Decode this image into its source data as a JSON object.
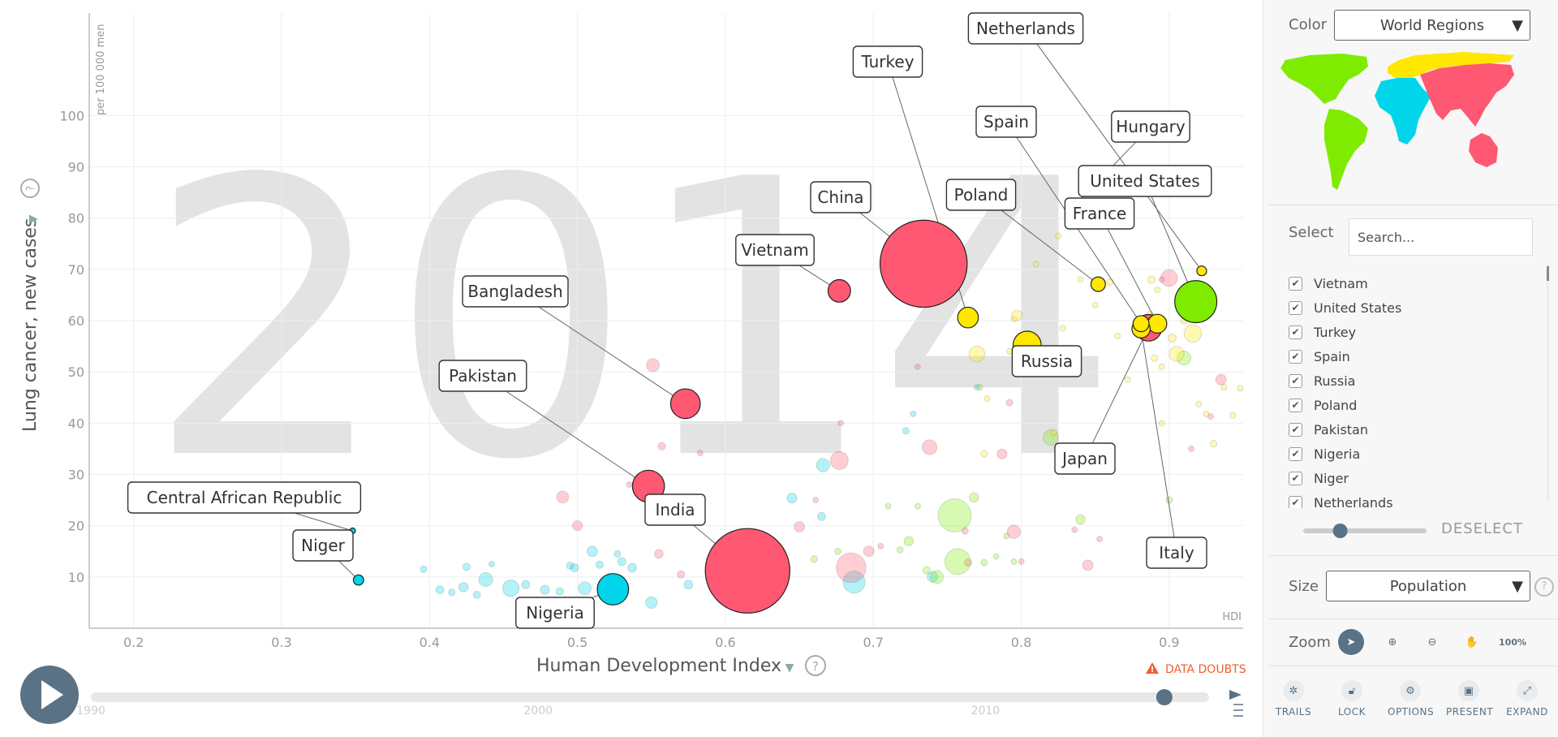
{
  "chart_data": {
    "type": "scatter",
    "year_watermark": "2014",
    "xlabel": "Human Development Index",
    "ylabel": "Lung cancer, new cases",
    "y_unit": "per 100 000 men",
    "x_corner_label": "HDI",
    "xlim": [
      0.17,
      0.95
    ],
    "ylim": [
      0,
      120
    ],
    "x_ticks": [
      "0.2",
      "0.3",
      "0.4",
      "0.5",
      "0.6",
      "0.7",
      "0.8",
      "0.9"
    ],
    "y_ticks": [
      "10",
      "20",
      "30",
      "40",
      "50",
      "60",
      "70",
      "80",
      "90",
      "100"
    ],
    "size_by": "Population",
    "color_by": "World Regions",
    "region_colors": {
      "africa": "#00d5e9",
      "americas": "#7feb00",
      "asia": "#ff5872",
      "europe": "#ffe700"
    },
    "labeled_points": [
      {
        "name": "Netherlands",
        "x": 0.922,
        "y": 69.7,
        "region": "europe",
        "pop": 17
      },
      {
        "name": "Turkey",
        "x": 0.764,
        "y": 60.6,
        "region": "europe",
        "pop": 77
      },
      {
        "name": "Spain",
        "x": 0.881,
        "y": 59.4,
        "region": "europe",
        "pop": 46
      },
      {
        "name": "Hungary",
        "x": 0.833,
        "y": 81.5,
        "region": "europe",
        "pop": 10
      },
      {
        "name": "United States",
        "x": 0.918,
        "y": 63.7,
        "region": "americas",
        "pop": 319
      },
      {
        "name": "Poland",
        "x": 0.852,
        "y": 67.1,
        "region": "europe",
        "pop": 38
      },
      {
        "name": "France",
        "x": 0.892,
        "y": 59.4,
        "region": "europe",
        "pop": 64
      },
      {
        "name": "China",
        "x": 0.734,
        "y": 71.1,
        "region": "asia",
        "pop": 1370
      },
      {
        "name": "Vietnam",
        "x": 0.677,
        "y": 65.8,
        "region": "asia",
        "pop": 91
      },
      {
        "name": "Bangladesh",
        "x": 0.573,
        "y": 43.8,
        "region": "asia",
        "pop": 159
      },
      {
        "name": "Pakistan",
        "x": 0.548,
        "y": 27.7,
        "region": "asia",
        "pop": 185
      },
      {
        "name": "Central African Republic",
        "x": 0.348,
        "y": 19.0,
        "region": "africa",
        "pop": 4.8
      },
      {
        "name": "Niger",
        "x": 0.352,
        "y": 9.4,
        "region": "africa",
        "pop": 19
      },
      {
        "name": "India",
        "x": 0.615,
        "y": 11.2,
        "region": "asia",
        "pop": 1290
      },
      {
        "name": "Nigeria",
        "x": 0.524,
        "y": 7.6,
        "region": "africa",
        "pop": 177
      },
      {
        "name": "Russia",
        "x": 0.804,
        "y": 55.2,
        "region": "europe",
        "pop": 143
      },
      {
        "name": "Japan",
        "x": 0.886,
        "y": 58.6,
        "region": "asia",
        "pop": 127
      },
      {
        "name": "Italy",
        "x": 0.881,
        "y": 58.4,
        "region": "europe",
        "pop": 60
      }
    ],
    "other_points": [
      {
        "x": 0.396,
        "y": 11.5,
        "region": "africa",
        "pop": 8
      },
      {
        "x": 0.407,
        "y": 7.5,
        "region": "africa",
        "pop": 12
      },
      {
        "x": 0.415,
        "y": 7.0,
        "region": "africa",
        "pop": 8
      },
      {
        "x": 0.423,
        "y": 8.0,
        "region": "africa",
        "pop": 16
      },
      {
        "x": 0.425,
        "y": 12.0,
        "region": "africa",
        "pop": 10
      },
      {
        "x": 0.432,
        "y": 6.5,
        "region": "africa",
        "pop": 10
      },
      {
        "x": 0.438,
        "y": 9.5,
        "region": "africa",
        "pop": 35
      },
      {
        "x": 0.442,
        "y": 12.5,
        "region": "africa",
        "pop": 6
      },
      {
        "x": 0.455,
        "y": 7.8,
        "region": "africa",
        "pop": 50
      },
      {
        "x": 0.465,
        "y": 8.5,
        "region": "africa",
        "pop": 12
      },
      {
        "x": 0.478,
        "y": 7.5,
        "region": "africa",
        "pop": 15
      },
      {
        "x": 0.488,
        "y": 7.2,
        "region": "africa",
        "pop": 10
      },
      {
        "x": 0.495,
        "y": 12.2,
        "region": "africa",
        "pop": 10
      },
      {
        "x": 0.498,
        "y": 11.8,
        "region": "africa",
        "pop": 12
      },
      {
        "x": 0.505,
        "y": 7.8,
        "region": "africa",
        "pop": 30
      },
      {
        "x": 0.51,
        "y": 15.0,
        "region": "africa",
        "pop": 20
      },
      {
        "x": 0.515,
        "y": 12.4,
        "region": "africa",
        "pop": 10
      },
      {
        "x": 0.52,
        "y": 6.2,
        "region": "africa",
        "pop": 14
      },
      {
        "x": 0.527,
        "y": 14.5,
        "region": "africa",
        "pop": 8
      },
      {
        "x": 0.53,
        "y": 13.0,
        "region": "africa",
        "pop": 12
      },
      {
        "x": 0.537,
        "y": 11.8,
        "region": "africa",
        "pop": 14
      },
      {
        "x": 0.55,
        "y": 5.0,
        "region": "africa",
        "pop": 24
      },
      {
        "x": 0.575,
        "y": 8.5,
        "region": "africa",
        "pop": 14
      },
      {
        "x": 0.645,
        "y": 25.4,
        "region": "africa",
        "pop": 18
      },
      {
        "x": 0.665,
        "y": 21.8,
        "region": "africa",
        "pop": 12
      },
      {
        "x": 0.666,
        "y": 31.8,
        "region": "africa",
        "pop": 32
      },
      {
        "x": 0.687,
        "y": 9.0,
        "region": "africa",
        "pop": 88
      },
      {
        "x": 0.722,
        "y": 38.5,
        "region": "africa",
        "pop": 8
      },
      {
        "x": 0.727,
        "y": 41.8,
        "region": "africa",
        "pop": 6
      },
      {
        "x": 0.74,
        "y": 10.0,
        "region": "africa",
        "pop": 20
      },
      {
        "x": 0.77,
        "y": 47.0,
        "region": "africa",
        "pop": 6
      },
      {
        "x": 0.49,
        "y": 25.6,
        "region": "asia",
        "pop": 26
      },
      {
        "x": 0.5,
        "y": 20.0,
        "region": "asia",
        "pop": 18
      },
      {
        "x": 0.535,
        "y": 28.0,
        "region": "asia",
        "pop": 6
      },
      {
        "x": 0.551,
        "y": 51.3,
        "region": "asia",
        "pop": 30
      },
      {
        "x": 0.555,
        "y": 14.5,
        "region": "asia",
        "pop": 14
      },
      {
        "x": 0.557,
        "y": 35.5,
        "region": "asia",
        "pop": 10
      },
      {
        "x": 0.57,
        "y": 10.5,
        "region": "asia",
        "pop": 10
      },
      {
        "x": 0.583,
        "y": 34.2,
        "region": "asia",
        "pop": 4
      },
      {
        "x": 0.65,
        "y": 19.8,
        "region": "asia",
        "pop": 20
      },
      {
        "x": 0.661,
        "y": 25.0,
        "region": "asia",
        "pop": 5
      },
      {
        "x": 0.677,
        "y": 32.7,
        "region": "asia",
        "pop": 58
      },
      {
        "x": 0.678,
        "y": 40.0,
        "region": "asia",
        "pop": 4
      },
      {
        "x": 0.685,
        "y": 11.8,
        "region": "asia",
        "pop": 160
      },
      {
        "x": 0.697,
        "y": 15.0,
        "region": "asia",
        "pop": 20
      },
      {
        "x": 0.705,
        "y": 16.0,
        "region": "asia",
        "pop": 5
      },
      {
        "x": 0.73,
        "y": 51.0,
        "region": "asia",
        "pop": 4
      },
      {
        "x": 0.738,
        "y": 35.3,
        "region": "asia",
        "pop": 40
      },
      {
        "x": 0.762,
        "y": 19.0,
        "region": "asia",
        "pop": 8
      },
      {
        "x": 0.764,
        "y": 12.8,
        "region": "asia",
        "pop": 10
      },
      {
        "x": 0.787,
        "y": 34.0,
        "region": "asia",
        "pop": 18
      },
      {
        "x": 0.792,
        "y": 44.0,
        "region": "asia",
        "pop": 8
      },
      {
        "x": 0.795,
        "y": 18.8,
        "region": "asia",
        "pop": 32
      },
      {
        "x": 0.8,
        "y": 13.0,
        "region": "asia",
        "pop": 4
      },
      {
        "x": 0.836,
        "y": 19.2,
        "region": "asia",
        "pop": 5
      },
      {
        "x": 0.845,
        "y": 12.3,
        "region": "asia",
        "pop": 20
      },
      {
        "x": 0.853,
        "y": 17.4,
        "region": "asia",
        "pop": 5
      },
      {
        "x": 0.895,
        "y": 68.0,
        "region": "asia",
        "pop": 4
      },
      {
        "x": 0.9,
        "y": 68.3,
        "region": "asia",
        "pop": 50
      },
      {
        "x": 0.915,
        "y": 35.0,
        "region": "asia",
        "pop": 5
      },
      {
        "x": 0.928,
        "y": 41.3,
        "region": "asia",
        "pop": 4
      },
      {
        "x": 0.935,
        "y": 48.5,
        "region": "asia",
        "pop": 20
      },
      {
        "x": 0.66,
        "y": 13.5,
        "region": "americas",
        "pop": 8
      },
      {
        "x": 0.676,
        "y": 15.0,
        "region": "americas",
        "pop": 7
      },
      {
        "x": 0.71,
        "y": 23.8,
        "region": "americas",
        "pop": 5
      },
      {
        "x": 0.718,
        "y": 15.3,
        "region": "americas",
        "pop": 7
      },
      {
        "x": 0.724,
        "y": 17.0,
        "region": "americas",
        "pop": 16
      },
      {
        "x": 0.73,
        "y": 23.8,
        "region": "americas",
        "pop": 3
      },
      {
        "x": 0.736,
        "y": 11.3,
        "region": "americas",
        "pop": 10
      },
      {
        "x": 0.743,
        "y": 10.0,
        "region": "americas",
        "pop": 30
      },
      {
        "x": 0.755,
        "y": 22.0,
        "region": "americas",
        "pop": 200
      },
      {
        "x": 0.757,
        "y": 13.0,
        "region": "americas",
        "pop": 120
      },
      {
        "x": 0.768,
        "y": 25.5,
        "region": "americas",
        "pop": 16
      },
      {
        "x": 0.772,
        "y": 47.0,
        "region": "americas",
        "pop": 5
      },
      {
        "x": 0.775,
        "y": 12.8,
        "region": "americas",
        "pop": 7
      },
      {
        "x": 0.783,
        "y": 14.0,
        "region": "americas",
        "pop": 4
      },
      {
        "x": 0.79,
        "y": 18.0,
        "region": "americas",
        "pop": 4
      },
      {
        "x": 0.795,
        "y": 13.0,
        "region": "americas",
        "pop": 4
      },
      {
        "x": 0.82,
        "y": 37.2,
        "region": "americas",
        "pop": 42
      },
      {
        "x": 0.84,
        "y": 21.2,
        "region": "americas",
        "pop": 16
      },
      {
        "x": 0.9,
        "y": 25.0,
        "region": "americas",
        "pop": 8
      },
      {
        "x": 0.91,
        "y": 52.7,
        "region": "americas",
        "pop": 35
      },
      {
        "x": 0.775,
        "y": 34.0,
        "region": "europe",
        "pop": 8
      },
      {
        "x": 0.777,
        "y": 44.8,
        "region": "europe",
        "pop": 3
      },
      {
        "x": 0.77,
        "y": 53.5,
        "region": "europe",
        "pop": 45
      },
      {
        "x": 0.792,
        "y": 54.0,
        "region": "europe",
        "pop": 4
      },
      {
        "x": 0.795,
        "y": 60.3,
        "region": "europe",
        "pop": 5
      },
      {
        "x": 0.797,
        "y": 61.0,
        "region": "europe",
        "pop": 20
      },
      {
        "x": 0.8,
        "y": 56.5,
        "region": "europe",
        "pop": 4
      },
      {
        "x": 0.81,
        "y": 71.0,
        "region": "europe",
        "pop": 4
      },
      {
        "x": 0.822,
        "y": 38.2,
        "region": "europe",
        "pop": 7
      },
      {
        "x": 0.825,
        "y": 76.5,
        "region": "europe",
        "pop": 4
      },
      {
        "x": 0.828,
        "y": 58.5,
        "region": "europe",
        "pop": 5
      },
      {
        "x": 0.84,
        "y": 68.0,
        "region": "europe",
        "pop": 4
      },
      {
        "x": 0.85,
        "y": 63.0,
        "region": "europe",
        "pop": 4
      },
      {
        "x": 0.86,
        "y": 67.5,
        "region": "europe",
        "pop": 8
      },
      {
        "x": 0.865,
        "y": 57.0,
        "region": "europe",
        "pop": 3
      },
      {
        "x": 0.872,
        "y": 48.5,
        "region": "europe",
        "pop": 4
      },
      {
        "x": 0.887,
        "y": 61.2,
        "region": "europe",
        "pop": 8
      },
      {
        "x": 0.888,
        "y": 68.0,
        "region": "europe",
        "pop": 10
      },
      {
        "x": 0.89,
        "y": 52.7,
        "region": "europe",
        "pop": 8
      },
      {
        "x": 0.892,
        "y": 66.0,
        "region": "europe",
        "pop": 3
      },
      {
        "x": 0.895,
        "y": 51.0,
        "region": "europe",
        "pop": 5
      },
      {
        "x": 0.895,
        "y": 40.0,
        "region": "europe",
        "pop": 5
      },
      {
        "x": 0.902,
        "y": 56.6,
        "region": "europe",
        "pop": 12
      },
      {
        "x": 0.905,
        "y": 53.5,
        "region": "europe",
        "pop": 40
      },
      {
        "x": 0.91,
        "y": 60.0,
        "region": "europe",
        "pop": 8
      },
      {
        "x": 0.915,
        "y": 61.5,
        "region": "europe",
        "pop": 4
      },
      {
        "x": 0.916,
        "y": 57.5,
        "region": "europe",
        "pop": 55
      },
      {
        "x": 0.92,
        "y": 43.7,
        "region": "europe",
        "pop": 4
      },
      {
        "x": 0.925,
        "y": 41.8,
        "region": "europe",
        "pop": 3
      },
      {
        "x": 0.93,
        "y": 36.0,
        "region": "europe",
        "pop": 8
      },
      {
        "x": 0.937,
        "y": 47.0,
        "region": "europe",
        "pop": 5
      },
      {
        "x": 0.943,
        "y": 41.5,
        "region": "europe",
        "pop": 6
      },
      {
        "x": 0.948,
        "y": 46.8,
        "region": "europe",
        "pop": 4
      }
    ],
    "timeline": {
      "ticks": [
        "1990",
        "2000",
        "2010"
      ],
      "start": 1990,
      "end": 2015,
      "current": 2014
    },
    "data_doubts_label": "DATA DOUBTS"
  },
  "sidebar": {
    "color_label": "Color",
    "color_value": "World Regions",
    "select_label": "Select",
    "search_placeholder": "Search...",
    "selected_countries": [
      "Vietnam",
      "United States",
      "Turkey",
      "Spain",
      "Russia",
      "Poland",
      "Pakistan",
      "Nigeria",
      "Niger",
      "Netherlands"
    ],
    "deselect_label": "DESELECT",
    "opacity_value": 0.3,
    "size_label": "Size",
    "size_value": "Population",
    "zoom_label": "Zoom",
    "zoom_reset_label": "100%",
    "bottom_buttons": [
      "TRAILS",
      "LOCK",
      "OPTIONS",
      "PRESENT",
      "EXPAND"
    ]
  },
  "icons": [
    "play-icon",
    "help-icon",
    "warning-icon",
    "checkmark-icon",
    "pointer-icon",
    "zoom-in-icon",
    "zoom-out-icon",
    "pan-icon",
    "trails-icon",
    "lock-icon",
    "options-icon",
    "present-icon",
    "expand-icon"
  ]
}
